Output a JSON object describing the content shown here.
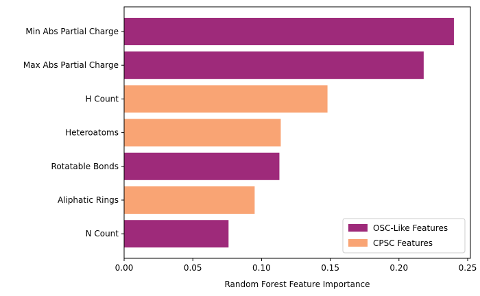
{
  "chart_data": {
    "type": "bar",
    "orientation": "horizontal",
    "title": "",
    "xlabel": "Random Forest Feature Importance",
    "ylabel": "",
    "xlim": [
      0,
      0.252
    ],
    "xticks": [
      0.0,
      0.05,
      0.1,
      0.15,
      0.2,
      0.25
    ],
    "xtick_labels": [
      "0.00",
      "0.05",
      "0.10",
      "0.15",
      "0.20",
      "0.25"
    ],
    "grid": false,
    "legend_position": "bottom-right",
    "legend": [
      {
        "name": "OSC-Like Features",
        "color": "#9e2a7a"
      },
      {
        "name": "CPSC Features",
        "color": "#f9a474"
      }
    ],
    "bars": [
      {
        "label": "Min Abs Partial Charge",
        "value": 0.24,
        "group": "OSC-Like Features"
      },
      {
        "label": "Max Abs Partial Charge",
        "value": 0.218,
        "group": "OSC-Like Features"
      },
      {
        "label": "H Count",
        "value": 0.148,
        "group": "CPSC Features"
      },
      {
        "label": "Heteroatoms",
        "value": 0.114,
        "group": "CPSC Features"
      },
      {
        "label": "Rotatable Bonds",
        "value": 0.113,
        "group": "OSC-Like Features"
      },
      {
        "label": "Aliphatic Rings",
        "value": 0.095,
        "group": "CPSC Features"
      },
      {
        "label": "N Count",
        "value": 0.076,
        "group": "OSC-Like Features"
      }
    ]
  }
}
